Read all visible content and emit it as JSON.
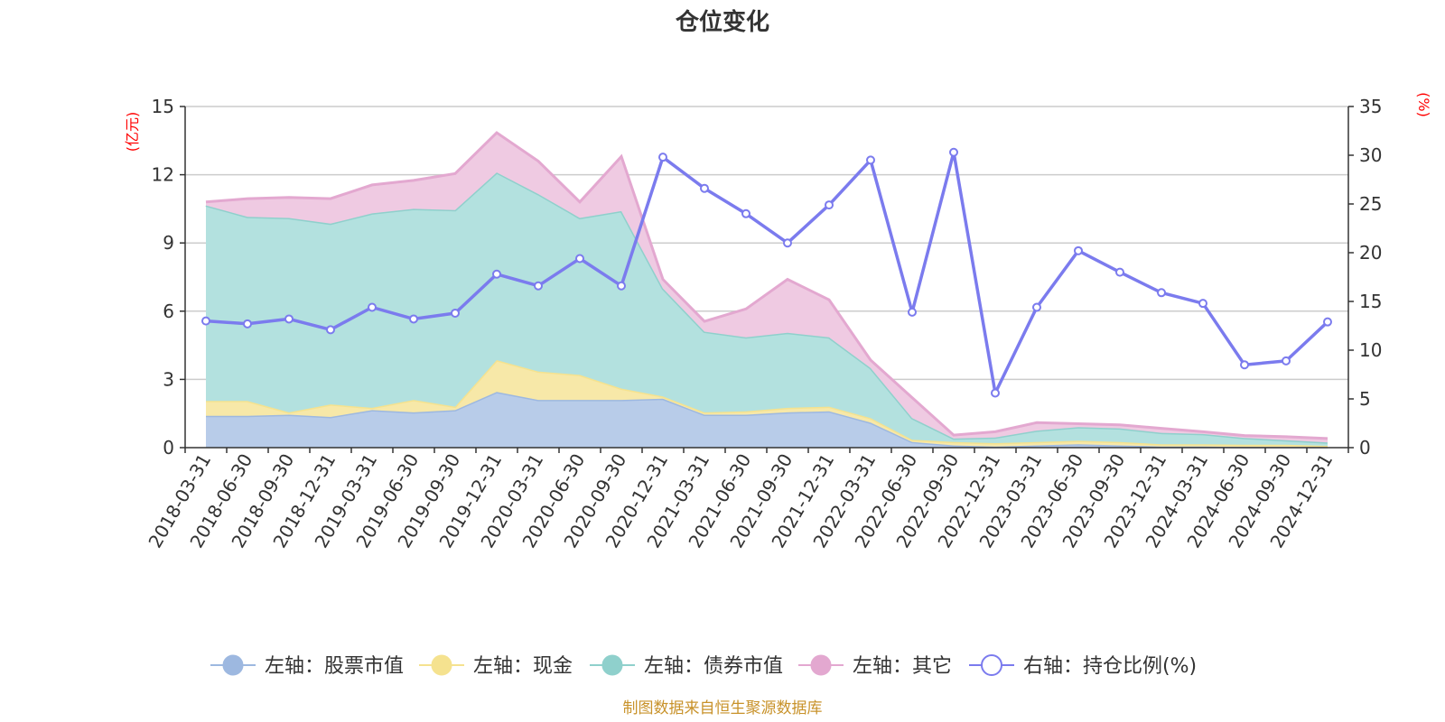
{
  "chart_data": {
    "type": "area",
    "title": "仓位变化",
    "source_note": "制图数据来自恒生聚源数据库",
    "left_axis": {
      "unit_label": "(亿元)",
      "ylim": [
        0,
        15
      ],
      "ticks": [
        0,
        3,
        6,
        9,
        12,
        15
      ]
    },
    "right_axis": {
      "unit_label": "(%)",
      "ylim": [
        0,
        35
      ],
      "ticks": [
        0,
        5,
        10,
        15,
        20,
        25,
        30,
        35
      ]
    },
    "categories": [
      "2018-03-31",
      "2018-06-30",
      "2018-09-30",
      "2018-12-31",
      "2019-03-31",
      "2019-06-30",
      "2019-09-30",
      "2019-12-31",
      "2020-03-31",
      "2020-06-30",
      "2020-09-30",
      "2020-12-31",
      "2021-03-31",
      "2021-06-30",
      "2021-09-30",
      "2021-12-31",
      "2022-03-31",
      "2022-06-30",
      "2022-09-30",
      "2022-12-31",
      "2023-03-31",
      "2023-06-30",
      "2023-09-30",
      "2023-12-31",
      "2024-03-31",
      "2024-06-30",
      "2024-09-30",
      "2024-12-31"
    ],
    "series": [
      {
        "name": "左轴：股票市值",
        "axis": "left",
        "kind": "stacked-area",
        "color": "#9db8e0",
        "fill": "#b8cce9",
        "values": [
          1.4,
          1.4,
          1.45,
          1.35,
          1.65,
          1.55,
          1.65,
          2.45,
          2.1,
          2.1,
          2.1,
          2.15,
          1.45,
          1.45,
          1.55,
          1.6,
          1.1,
          0.25,
          0.1,
          0.05,
          0.1,
          0.15,
          0.1,
          0.05,
          0.05,
          0.03,
          0.03,
          0.03
        ]
      },
      {
        "name": "左轴：现金",
        "axis": "left",
        "kind": "stacked-area",
        "color": "#f5e28f",
        "fill": "#f7e8a8",
        "values": [
          0.65,
          0.65,
          0.1,
          0.55,
          0.1,
          0.55,
          0.15,
          1.4,
          1.25,
          1.1,
          0.5,
          0.1,
          0.1,
          0.15,
          0.2,
          0.2,
          0.2,
          0.1,
          0.15,
          0.15,
          0.15,
          0.15,
          0.15,
          0.1,
          0.1,
          0.1,
          0.1,
          0.05
        ]
      },
      {
        "name": "左轴：债券市值",
        "axis": "left",
        "kind": "stacked-area",
        "color": "#8fd0cc",
        "fill": "#b3e1df",
        "values": [
          8.6,
          8.1,
          8.55,
          7.95,
          8.55,
          8.4,
          8.65,
          8.25,
          7.8,
          6.9,
          7.8,
          4.75,
          3.55,
          3.25,
          3.3,
          3.05,
          2.2,
          0.95,
          0.15,
          0.25,
          0.5,
          0.6,
          0.6,
          0.5,
          0.45,
          0.3,
          0.2,
          0.15
        ]
      },
      {
        "name": "左轴：其它",
        "axis": "left",
        "kind": "stacked-area",
        "color": "#e3a8d0",
        "fill": "#efcae2",
        "values": [
          0.15,
          0.8,
          0.9,
          1.1,
          1.25,
          1.25,
          1.6,
          1.75,
          1.45,
          0.7,
          2.4,
          0.4,
          0.45,
          1.25,
          2.35,
          1.65,
          0.35,
          0.9,
          0.15,
          0.25,
          0.35,
          0.15,
          0.15,
          0.2,
          0.1,
          0.1,
          0.15,
          0.17
        ]
      },
      {
        "name": "右轴：持仓比例(%)",
        "axis": "right",
        "kind": "line",
        "color": "#7b7bee",
        "values": [
          13.0,
          12.7,
          13.2,
          12.1,
          14.4,
          13.2,
          13.8,
          17.8,
          16.6,
          19.4,
          16.6,
          29.8,
          26.6,
          24.0,
          21.0,
          24.9,
          29.5,
          13.9,
          30.3,
          5.6,
          14.4,
          20.2,
          18.0,
          15.9,
          14.8,
          8.5,
          8.9,
          12.9
        ]
      }
    ]
  }
}
